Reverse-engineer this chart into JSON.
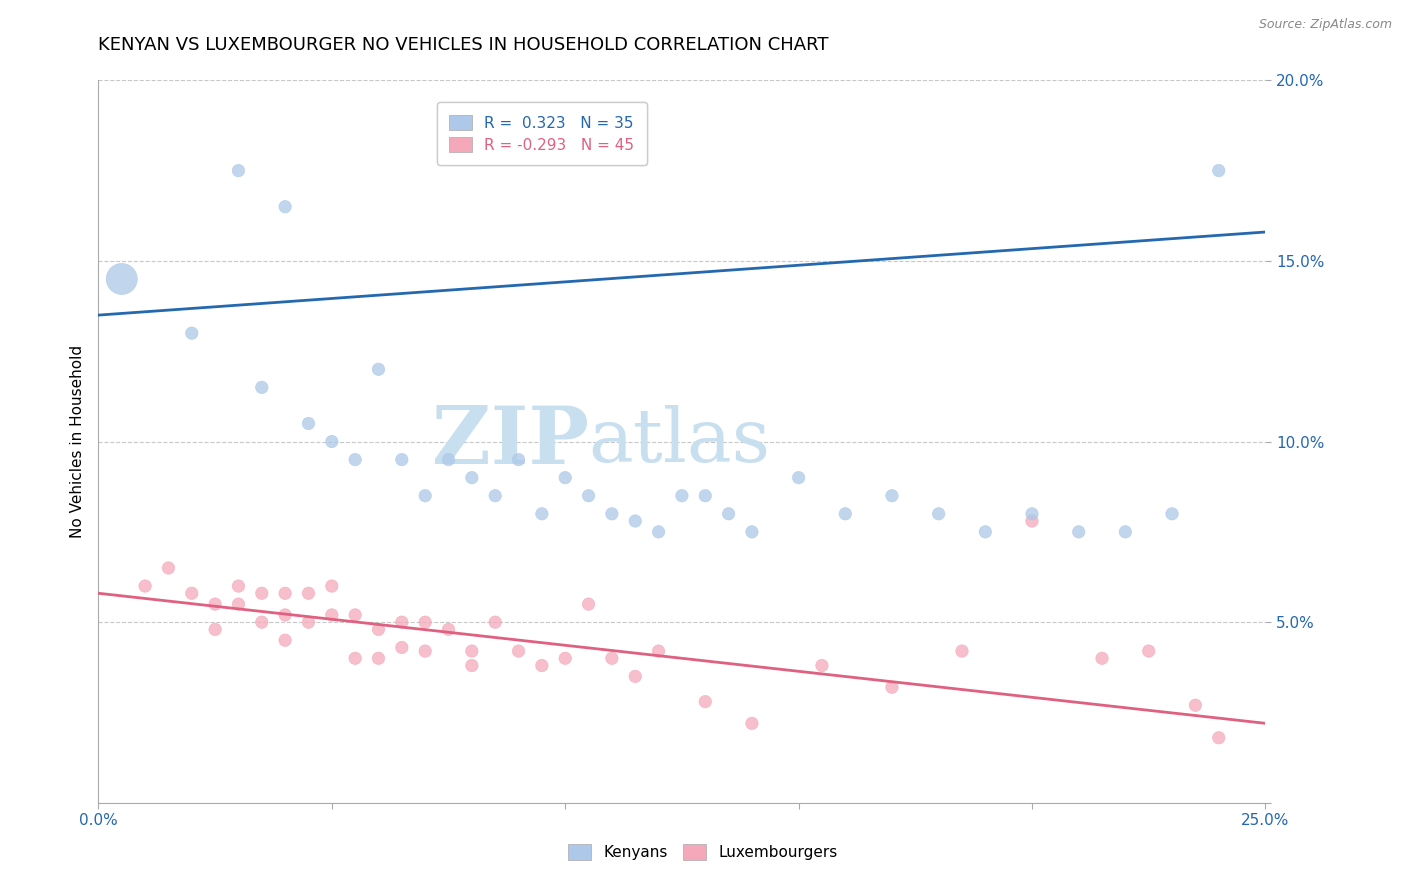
{
  "title": "KENYAN VS LUXEMBOURGER NO VEHICLES IN HOUSEHOLD CORRELATION CHART",
  "source": "Source: ZipAtlas.com",
  "ylabel": "No Vehicles in Household",
  "xlabel": "",
  "xlim": [
    0.0,
    0.25
  ],
  "ylim": [
    0.0,
    0.2
  ],
  "xticks": [
    0.0,
    0.05,
    0.1,
    0.15,
    0.2,
    0.25
  ],
  "yticks": [
    0.0,
    0.05,
    0.1,
    0.15,
    0.2
  ],
  "kenyan_R": 0.323,
  "kenyan_N": 35,
  "luxembourger_R": -0.293,
  "luxembourger_N": 45,
  "legend1_text": "R =  0.323   N = 35",
  "legend2_text": "R = -0.293   N = 45",
  "kenyan_color": "#adc8e8",
  "luxembourger_color": "#f5a8ba",
  "kenyan_line_color": "#2468b0",
  "luxembourger_line_color": "#e06080",
  "watermark_zip": "ZIP",
  "watermark_atlas": "atlas",
  "kenyan_x": [
    0.005,
    0.03,
    0.04,
    0.02,
    0.035,
    0.045,
    0.05,
    0.055,
    0.06,
    0.065,
    0.07,
    0.075,
    0.08,
    0.085,
    0.09,
    0.095,
    0.1,
    0.105,
    0.11,
    0.115,
    0.12,
    0.125,
    0.13,
    0.135,
    0.14,
    0.15,
    0.16,
    0.17,
    0.18,
    0.19,
    0.2,
    0.21,
    0.22,
    0.23,
    0.24
  ],
  "kenyan_y": [
    0.145,
    0.175,
    0.165,
    0.13,
    0.115,
    0.105,
    0.1,
    0.095,
    0.12,
    0.095,
    0.085,
    0.095,
    0.09,
    0.085,
    0.095,
    0.08,
    0.09,
    0.085,
    0.08,
    0.078,
    0.075,
    0.085,
    0.085,
    0.08,
    0.075,
    0.09,
    0.08,
    0.085,
    0.08,
    0.075,
    0.08,
    0.075,
    0.075,
    0.08,
    0.175
  ],
  "kenyan_sizes": [
    500,
    80,
    80,
    80,
    80,
    80,
    80,
    80,
    80,
    80,
    80,
    80,
    80,
    80,
    80,
    80,
    80,
    80,
    80,
    80,
    80,
    80,
    80,
    80,
    80,
    80,
    80,
    80,
    80,
    80,
    80,
    80,
    80,
    80,
    80
  ],
  "luxembourger_x": [
    0.01,
    0.015,
    0.02,
    0.025,
    0.025,
    0.03,
    0.03,
    0.035,
    0.035,
    0.04,
    0.04,
    0.04,
    0.045,
    0.045,
    0.05,
    0.05,
    0.055,
    0.055,
    0.06,
    0.06,
    0.065,
    0.065,
    0.07,
    0.07,
    0.075,
    0.08,
    0.08,
    0.085,
    0.09,
    0.095,
    0.1,
    0.105,
    0.11,
    0.115,
    0.12,
    0.13,
    0.14,
    0.155,
    0.17,
    0.185,
    0.2,
    0.215,
    0.225,
    0.235,
    0.24
  ],
  "luxembourger_y": [
    0.06,
    0.065,
    0.058,
    0.055,
    0.048,
    0.06,
    0.055,
    0.058,
    0.05,
    0.058,
    0.052,
    0.045,
    0.058,
    0.05,
    0.06,
    0.052,
    0.052,
    0.04,
    0.04,
    0.048,
    0.05,
    0.043,
    0.05,
    0.042,
    0.048,
    0.042,
    0.038,
    0.05,
    0.042,
    0.038,
    0.04,
    0.055,
    0.04,
    0.035,
    0.042,
    0.028,
    0.022,
    0.038,
    0.032,
    0.042,
    0.078,
    0.04,
    0.042,
    0.027,
    0.018
  ],
  "luxembourger_sizes": [
    80,
    80,
    80,
    80,
    80,
    80,
    80,
    80,
    80,
    80,
    80,
    80,
    80,
    80,
    80,
    80,
    80,
    80,
    80,
    80,
    80,
    80,
    80,
    80,
    80,
    80,
    80,
    80,
    80,
    80,
    80,
    80,
    80,
    80,
    80,
    80,
    80,
    80,
    80,
    80,
    80,
    80,
    80,
    80,
    80
  ],
  "kenyan_line_x0": 0.0,
  "kenyan_line_y0": 0.135,
  "kenyan_line_x1": 0.25,
  "kenyan_line_y1": 0.158,
  "lux_line_x0": 0.0,
  "lux_line_y0": 0.058,
  "lux_line_x1": 0.25,
  "lux_line_y1": 0.022,
  "background_color": "#ffffff",
  "grid_color": "#c8c8c8",
  "title_fontsize": 13,
  "label_fontsize": 11,
  "tick_fontsize": 11
}
